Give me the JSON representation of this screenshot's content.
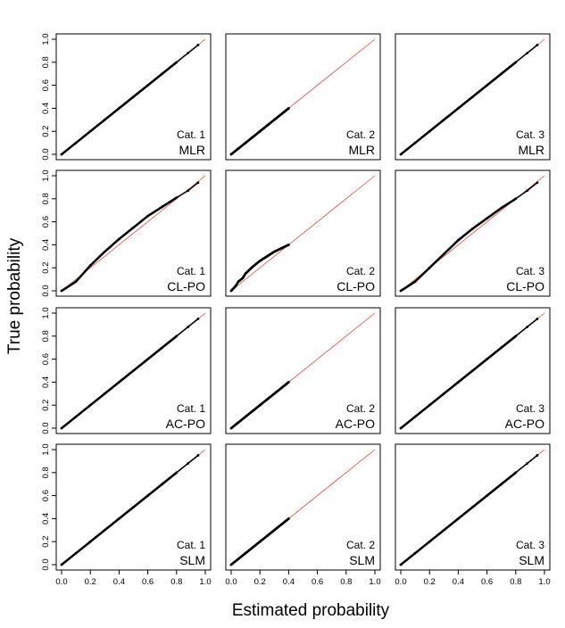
{
  "chart_data": {
    "type": "scatter",
    "layout_grid": {
      "rows": 4,
      "cols": 3
    },
    "xlabel": "Estimated probability",
    "ylabel": "True probability",
    "xlim": [
      0,
      1
    ],
    "ylim": [
      0,
      1
    ],
    "x_ticks": [
      "0.0",
      "0.2",
      "0.4",
      "0.6",
      "0.8",
      "1.0"
    ],
    "y_ticks": [
      "0.0",
      "0.2",
      "0.4",
      "0.6",
      "0.8",
      "1.0"
    ],
    "grid": false,
    "reference_line": {
      "from": [
        0,
        0
      ],
      "to": [
        1,
        1
      ],
      "color": "#e8423f"
    },
    "point_color": "#000000",
    "panels": [
      {
        "model": "MLR",
        "category": "Cat. 1",
        "x": [
          0.0,
          0.1,
          0.2,
          0.3,
          0.4,
          0.5,
          0.6,
          0.7,
          0.8,
          0.88,
          0.95
        ],
        "y": [
          0.0,
          0.1,
          0.2,
          0.3,
          0.4,
          0.5,
          0.6,
          0.7,
          0.8,
          0.88,
          0.95
        ]
      },
      {
        "model": "MLR",
        "category": "Cat. 2",
        "x": [
          0.0,
          0.05,
          0.1,
          0.15,
          0.2,
          0.25,
          0.3,
          0.35,
          0.4
        ],
        "y": [
          0.0,
          0.05,
          0.1,
          0.15,
          0.2,
          0.25,
          0.3,
          0.35,
          0.4
        ]
      },
      {
        "model": "MLR",
        "category": "Cat. 3",
        "x": [
          0.0,
          0.1,
          0.2,
          0.3,
          0.4,
          0.5,
          0.6,
          0.7,
          0.8,
          0.88,
          0.95
        ],
        "y": [
          0.0,
          0.1,
          0.2,
          0.3,
          0.4,
          0.5,
          0.6,
          0.7,
          0.8,
          0.88,
          0.95
        ]
      },
      {
        "model": "CL-PO",
        "category": "Cat. 1",
        "x": [
          0.0,
          0.1,
          0.2,
          0.3,
          0.4,
          0.5,
          0.6,
          0.7,
          0.8,
          0.88,
          0.95
        ],
        "y": [
          0.0,
          0.08,
          0.22,
          0.34,
          0.45,
          0.55,
          0.65,
          0.73,
          0.81,
          0.87,
          0.94
        ]
      },
      {
        "model": "CL-PO",
        "category": "Cat. 2",
        "x": [
          0.0,
          0.03,
          0.05,
          0.08,
          0.1,
          0.15,
          0.2,
          0.25,
          0.3,
          0.35,
          0.4
        ],
        "y": [
          0.0,
          0.04,
          0.08,
          0.11,
          0.15,
          0.21,
          0.26,
          0.3,
          0.34,
          0.37,
          0.4
        ]
      },
      {
        "model": "CL-PO",
        "category": "Cat. 3",
        "x": [
          0.0,
          0.1,
          0.2,
          0.3,
          0.4,
          0.5,
          0.6,
          0.7,
          0.8,
          0.88,
          0.95
        ],
        "y": [
          0.0,
          0.08,
          0.2,
          0.32,
          0.44,
          0.54,
          0.63,
          0.72,
          0.8,
          0.87,
          0.94
        ]
      },
      {
        "model": "AC-PO",
        "category": "Cat. 1",
        "x": [
          0.0,
          0.1,
          0.2,
          0.3,
          0.4,
          0.5,
          0.6,
          0.7,
          0.8,
          0.88,
          0.95
        ],
        "y": [
          0.0,
          0.1,
          0.2,
          0.3,
          0.4,
          0.5,
          0.6,
          0.7,
          0.8,
          0.88,
          0.95
        ]
      },
      {
        "model": "AC-PO",
        "category": "Cat. 2",
        "x": [
          0.0,
          0.05,
          0.1,
          0.15,
          0.2,
          0.25,
          0.3,
          0.35,
          0.4
        ],
        "y": [
          0.0,
          0.05,
          0.1,
          0.15,
          0.2,
          0.25,
          0.3,
          0.35,
          0.4
        ]
      },
      {
        "model": "AC-PO",
        "category": "Cat. 3",
        "x": [
          0.0,
          0.1,
          0.2,
          0.3,
          0.4,
          0.5,
          0.6,
          0.7,
          0.8,
          0.88,
          0.95
        ],
        "y": [
          0.0,
          0.1,
          0.2,
          0.3,
          0.4,
          0.5,
          0.6,
          0.7,
          0.8,
          0.88,
          0.95
        ]
      },
      {
        "model": "SLM",
        "category": "Cat. 1",
        "x": [
          0.0,
          0.1,
          0.2,
          0.3,
          0.4,
          0.5,
          0.6,
          0.7,
          0.8,
          0.88,
          0.95
        ],
        "y": [
          0.0,
          0.1,
          0.2,
          0.3,
          0.4,
          0.5,
          0.6,
          0.7,
          0.8,
          0.88,
          0.95
        ]
      },
      {
        "model": "SLM",
        "category": "Cat. 2",
        "x": [
          0.0,
          0.05,
          0.1,
          0.15,
          0.2,
          0.25,
          0.3,
          0.35,
          0.4
        ],
        "y": [
          0.0,
          0.05,
          0.1,
          0.15,
          0.2,
          0.25,
          0.3,
          0.35,
          0.4
        ]
      },
      {
        "model": "SLM",
        "category": "Cat. 3",
        "x": [
          0.0,
          0.1,
          0.2,
          0.3,
          0.4,
          0.5,
          0.6,
          0.7,
          0.8,
          0.88,
          0.95
        ],
        "y": [
          0.0,
          0.1,
          0.2,
          0.3,
          0.4,
          0.5,
          0.6,
          0.7,
          0.8,
          0.88,
          0.95
        ]
      }
    ]
  }
}
